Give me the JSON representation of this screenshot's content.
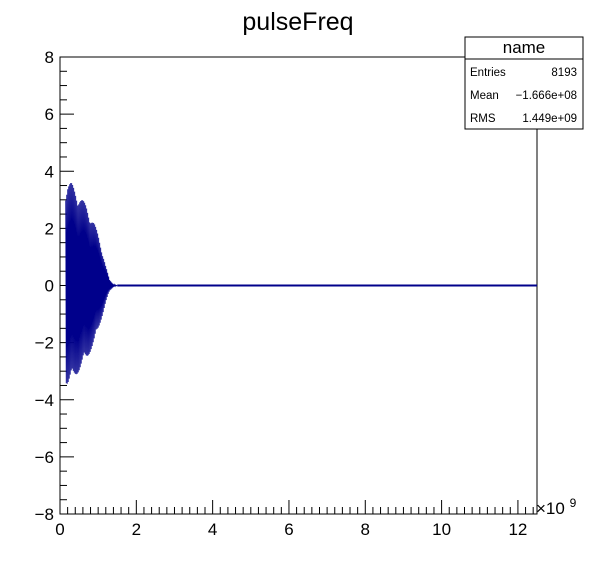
{
  "chart_data": {
    "type": "line",
    "title": "pulseFreq",
    "xlabel": "",
    "ylabel": "",
    "xlim": [
      0,
      12.5
    ],
    "ylim": [
      -8,
      8
    ],
    "x_multiplier": "×10",
    "x_exponent": "9",
    "x_ticks": [
      "0",
      "2",
      "4",
      "6",
      "8",
      "10",
      "12"
    ],
    "y_ticks": [
      "−8",
      "−6",
      "−4",
      "−2",
      "0",
      "2",
      "4",
      "6",
      "8"
    ],
    "grid": false,
    "series_color": "#00008b",
    "envelope": {
      "x": [
        0.15,
        0.2,
        0.3,
        0.4,
        0.5,
        0.6,
        0.7,
        0.8,
        0.9,
        1.0,
        1.1,
        1.2,
        1.3,
        1.4,
        1.5
      ],
      "upper": [
        3.5,
        3.65,
        3.6,
        3.4,
        3.2,
        3.0,
        2.8,
        2.5,
        2.2,
        1.8,
        1.3,
        0.7,
        0.2,
        0.05,
        0.0
      ],
      "lower": [
        -3.4,
        -3.5,
        -3.4,
        -3.2,
        -3.0,
        -2.8,
        -2.6,
        -2.3,
        -2.0,
        -1.6,
        -1.1,
        -0.6,
        -0.2,
        -0.05,
        0.0
      ]
    },
    "baseline": {
      "x": [
        1.5,
        12.5
      ],
      "y": [
        0,
        0
      ]
    }
  },
  "stats_box": {
    "name": "name",
    "rows": [
      {
        "label": "Entries",
        "value": "8193"
      },
      {
        "label": "Mean",
        "value": "−1.666e+08"
      },
      {
        "label": "RMS",
        "value": "1.449e+09"
      }
    ]
  }
}
